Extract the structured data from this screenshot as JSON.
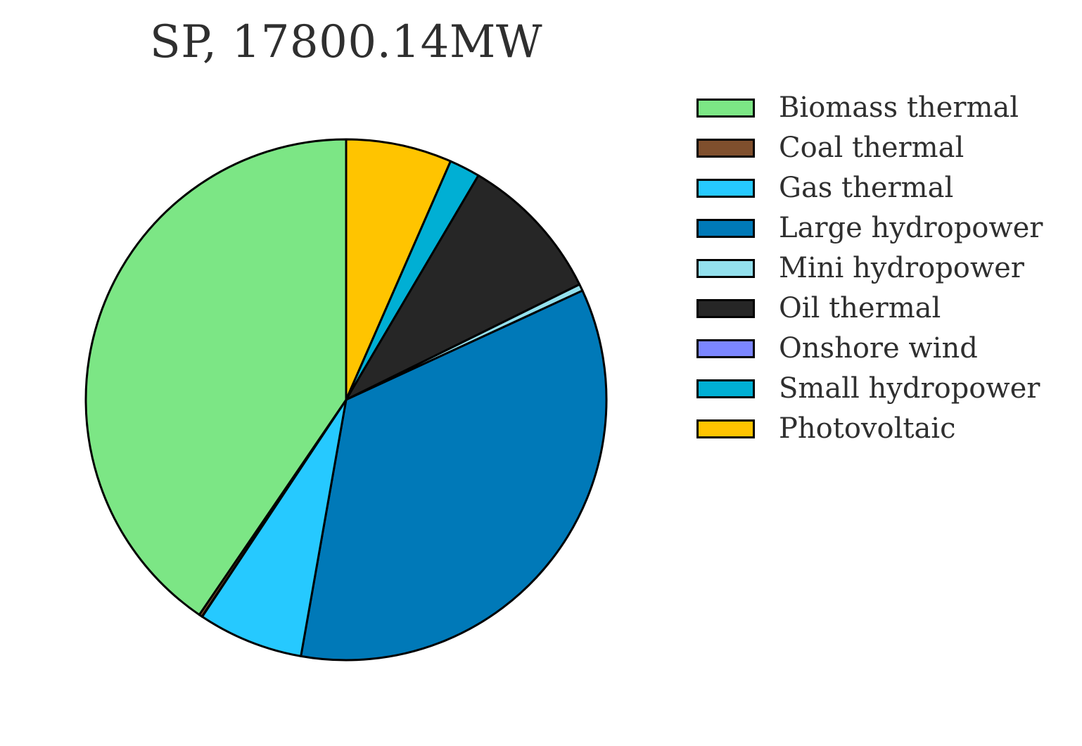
{
  "chart_data": {
    "type": "pie",
    "title": "SP, 17800.14MW",
    "start_angle_deg": 90,
    "direction": "clockwise",
    "legend_position": "upper-right",
    "slices": [
      {
        "label": "Photovoltaic",
        "value": 1170,
        "color": "#FFC400"
      },
      {
        "label": "Small hydropower",
        "value": 340,
        "color": "#00AFD4"
      },
      {
        "label": "Oil thermal",
        "value": 1640,
        "color": "#262626"
      },
      {
        "label": "Mini hydropower",
        "value": 75,
        "color": "#93E0ED"
      },
      {
        "label": "Large hydropower",
        "value": 6170,
        "color": "#0079B8"
      },
      {
        "label": "Gas thermal",
        "value": 1165,
        "color": "#26C9FF"
      },
      {
        "label": "Onshore wind",
        "value": 3,
        "color": "#7B86FF"
      },
      {
        "label": "Coal thermal",
        "value": 35,
        "color": "#7F4F2D"
      },
      {
        "label": "Biomass thermal",
        "value": 7202.14,
        "color": "#7CE685"
      }
    ],
    "legend": [
      {
        "label": "Biomass thermal",
        "color": "#7CE685"
      },
      {
        "label": "Coal thermal",
        "color": "#7F4F2D"
      },
      {
        "label": "Gas thermal",
        "color": "#26C9FF"
      },
      {
        "label": "Large hydropower",
        "color": "#0079B8"
      },
      {
        "label": "Mini hydropower",
        "color": "#93E0ED"
      },
      {
        "label": "Oil thermal",
        "color": "#262626"
      },
      {
        "label": "Onshore wind",
        "color": "#7B86FF"
      },
      {
        "label": "Small hydropower",
        "color": "#00AFD4"
      },
      {
        "label": "Photovoltaic",
        "color": "#FFC400"
      }
    ]
  }
}
